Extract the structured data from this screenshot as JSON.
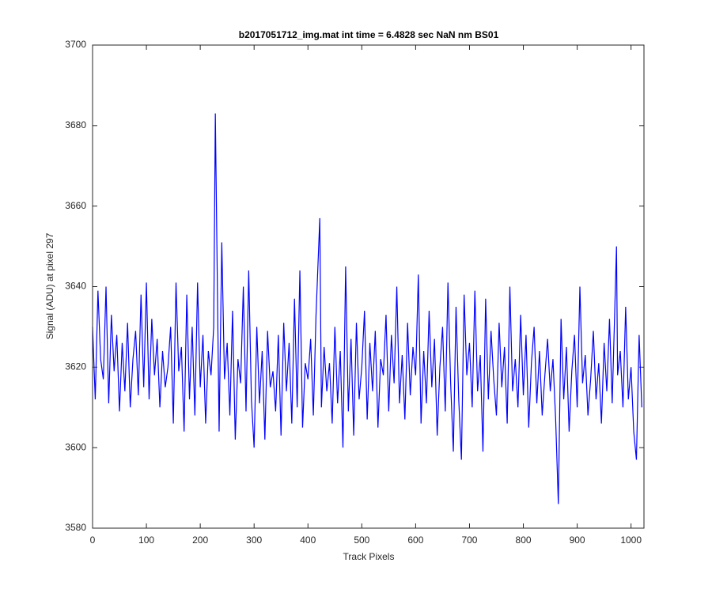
{
  "chart_data": {
    "type": "line",
    "title": "b2017051712_img.mat int time = 6.4828 sec  NaN nm BS01",
    "xlabel": "Track Pixels",
    "ylabel": "Signal (ADU) at pixel 297",
    "color": "#0000ff",
    "xlim": [
      0,
      1024
    ],
    "ylim": [
      3580,
      3700
    ],
    "xticks": [
      0,
      100,
      200,
      300,
      400,
      500,
      600,
      700,
      800,
      900,
      1000
    ],
    "yticks": [
      3580,
      3600,
      3620,
      3640,
      3660,
      3680,
      3700
    ],
    "x": [
      0,
      5,
      10,
      15,
      20,
      25,
      30,
      35,
      40,
      45,
      50,
      55,
      60,
      65,
      70,
      75,
      80,
      85,
      90,
      95,
      100,
      105,
      110,
      115,
      120,
      125,
      130,
      135,
      140,
      145,
      150,
      155,
      160,
      165,
      170,
      175,
      180,
      185,
      190,
      195,
      200,
      205,
      210,
      215,
      220,
      225,
      228,
      235,
      240,
      245,
      250,
      255,
      260,
      265,
      270,
      275,
      280,
      285,
      290,
      295,
      300,
      305,
      310,
      315,
      320,
      325,
      330,
      335,
      340,
      345,
      350,
      355,
      360,
      365,
      370,
      375,
      380,
      385,
      390,
      395,
      400,
      405,
      410,
      415,
      422,
      425,
      430,
      435,
      440,
      445,
      450,
      455,
      460,
      465,
      470,
      475,
      480,
      485,
      490,
      495,
      500,
      505,
      510,
      515,
      520,
      525,
      530,
      535,
      540,
      545,
      550,
      555,
      560,
      565,
      570,
      575,
      580,
      585,
      590,
      595,
      600,
      605,
      610,
      615,
      620,
      625,
      630,
      635,
      640,
      645,
      650,
      655,
      660,
      665,
      670,
      675,
      680,
      685,
      690,
      695,
      700,
      705,
      710,
      715,
      720,
      725,
      730,
      735,
      740,
      745,
      750,
      755,
      760,
      765,
      770,
      775,
      780,
      785,
      790,
      795,
      800,
      805,
      810,
      815,
      820,
      825,
      830,
      835,
      840,
      845,
      850,
      855,
      860,
      865,
      870,
      875,
      880,
      885,
      890,
      895,
      900,
      905,
      910,
      915,
      920,
      925,
      930,
      935,
      940,
      945,
      950,
      955,
      960,
      965,
      973,
      975,
      980,
      985,
      990,
      995,
      1000,
      1005,
      1010,
      1015,
      1020
    ],
    "values": [
      3630,
      3612,
      3639,
      3622,
      3617,
      3640,
      3611,
      3633,
      3619,
      3628,
      3609,
      3626,
      3614,
      3631,
      3610,
      3622,
      3629,
      3613,
      3638,
      3615,
      3641,
      3612,
      3632,
      3618,
      3627,
      3610,
      3624,
      3615,
      3620,
      3630,
      3606,
      3641,
      3619,
      3625,
      3604,
      3638,
      3612,
      3630,
      3608,
      3641,
      3615,
      3628,
      3606,
      3624,
      3618,
      3630,
      3683,
      3604,
      3651,
      3617,
      3626,
      3608,
      3634,
      3602,
      3622,
      3616,
      3640,
      3609,
      3644,
      3612,
      3600,
      3630,
      3611,
      3624,
      3602,
      3629,
      3615,
      3619,
      3609,
      3628,
      3603,
      3631,
      3614,
      3626,
      3606,
      3637,
      3610,
      3644,
      3605,
      3621,
      3617,
      3627,
      3608,
      3633,
      3657,
      3610,
      3625,
      3614,
      3621,
      3606,
      3630,
      3611,
      3624,
      3600,
      3645,
      3609,
      3627,
      3603,
      3631,
      3612,
      3620,
      3634,
      3607,
      3626,
      3614,
      3629,
      3605,
      3622,
      3618,
      3633,
      3609,
      3628,
      3616,
      3640,
      3611,
      3623,
      3607,
      3631,
      3613,
      3625,
      3618,
      3643,
      3606,
      3624,
      3611,
      3634,
      3615,
      3627,
      3603,
      3620,
      3630,
      3609,
      3641,
      3616,
      3599,
      3635,
      3612,
      3597,
      3638,
      3618,
      3626,
      3610,
      3639,
      3614,
      3623,
      3599,
      3637,
      3612,
      3629,
      3617,
      3608,
      3631,
      3615,
      3625,
      3606,
      3640,
      3614,
      3622,
      3610,
      3633,
      3613,
      3628,
      3605,
      3621,
      3630,
      3611,
      3624,
      3608,
      3618,
      3627,
      3614,
      3622,
      3607,
      3586,
      3632,
      3612,
      3625,
      3604,
      3619,
      3628,
      3610,
      3640,
      3616,
      3623,
      3608,
      3617,
      3629,
      3612,
      3621,
      3606,
      3626,
      3614,
      3632,
      3611,
      3650,
      3618,
      3624,
      3610,
      3635,
      3612,
      3620,
      3604,
      3597,
      3628,
      3610
    ]
  }
}
